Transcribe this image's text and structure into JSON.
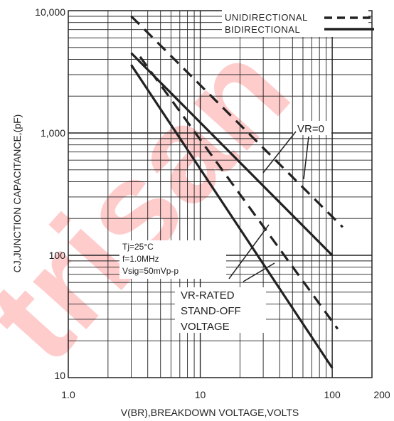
{
  "chart_data": {
    "type": "line",
    "xlabel": "V(BR),BREAKDOWN VOLTAGE,VOLTS",
    "ylabel": "CJ,JUNCTION CAPACITANCE,(pF)",
    "x_scale": "log",
    "y_scale": "log",
    "xlim": [
      1,
      200
    ],
    "ylim": [
      10,
      10000
    ],
    "x_tick_labels": [
      "1.0",
      "10",
      "100",
      "200"
    ],
    "y_tick_labels": [
      "10",
      "100",
      "1,000",
      "10,000"
    ],
    "grid": true,
    "legend_position": "top-right",
    "legend": [
      {
        "label": "UNIDIRECTIONAL",
        "style": "dashed"
      },
      {
        "label": "BIDIRECTIONAL",
        "style": "solid"
      }
    ],
    "series": [
      {
        "style": "dashed",
        "x": [
          3,
          120
        ],
        "y": [
          9000,
          170
        ]
      },
      {
        "style": "dashed",
        "x": [
          3.5,
          110
        ],
        "y": [
          4200,
          25
        ]
      },
      {
        "style": "solid",
        "x": [
          3,
          100
        ],
        "y": [
          4500,
          100
        ]
      },
      {
        "style": "solid",
        "x": [
          3,
          100
        ],
        "y": [
          3600,
          12
        ]
      }
    ],
    "annotations": {
      "vr_zero": "VR=0",
      "vr_rated": [
        "VR-RATED",
        "STAND-OFF",
        "VOLTAGE"
      ],
      "conditions": [
        "Tj=25°C",
        "f=1.0MHz",
        "Vsig=50mVp-p"
      ]
    },
    "watermark": "trisan",
    "colors": {
      "lines": "#222222",
      "grid": "#222222",
      "watermark": "#ff0000"
    }
  }
}
